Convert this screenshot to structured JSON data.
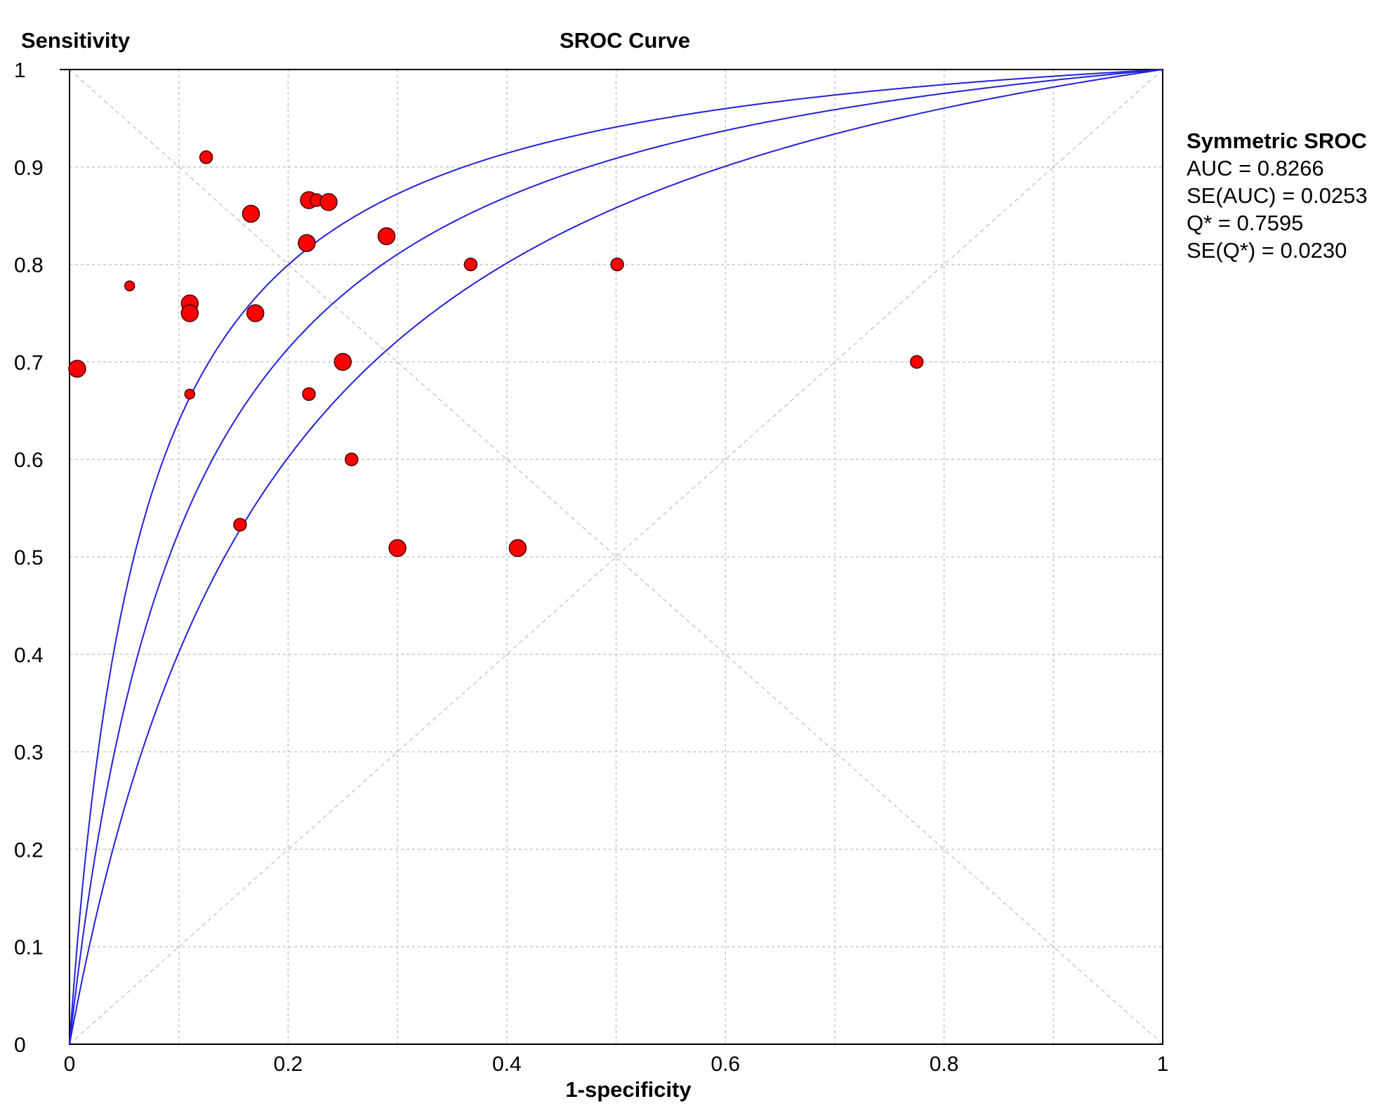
{
  "chart_data": {
    "type": "scatter",
    "title": "SROC Curve",
    "xlabel": "1-specificity",
    "ylabel": "Sensitivity",
    "xlim": [
      0,
      1
    ],
    "ylim": [
      0,
      1
    ],
    "grid": true,
    "x_ticks": [
      "0",
      "0.2",
      "0.4",
      "0.6",
      "0.8",
      "1"
    ],
    "y_ticks": [
      "0",
      "0.1",
      "0.2",
      "0.3",
      "0.4",
      "0.5",
      "0.6",
      "0.7",
      "0.8",
      "0.9",
      "1"
    ],
    "legend_position": "right",
    "legend": {
      "title": "Symmetric SROC",
      "lines": [
        "AUC = 0.8266",
        "SE(AUC) = 0.0253",
        "Q* = 0.7595",
        "SE(Q*) = 0.0230"
      ]
    },
    "curves": [
      {
        "name": "upper",
        "log_dor": 2.77
      },
      {
        "name": "sroc",
        "log_dor": 2.3
      },
      {
        "name": "lower",
        "log_dor": 1.8
      }
    ],
    "colors": {
      "curve": "#2020e0",
      "point": "#ff0000",
      "grid": "#c8c8c8"
    },
    "points": [
      {
        "x": 0.007,
        "y": 0.693,
        "weight": 3
      },
      {
        "x": 0.055,
        "y": 0.778,
        "weight": 1
      },
      {
        "x": 0.11,
        "y": 0.76,
        "weight": 3
      },
      {
        "x": 0.11,
        "y": 0.75,
        "weight": 3
      },
      {
        "x": 0.11,
        "y": 0.667,
        "weight": 1
      },
      {
        "x": 0.125,
        "y": 0.91,
        "weight": 2
      },
      {
        "x": 0.156,
        "y": 0.533,
        "weight": 2
      },
      {
        "x": 0.166,
        "y": 0.852,
        "weight": 3
      },
      {
        "x": 0.17,
        "y": 0.75,
        "weight": 3
      },
      {
        "x": 0.217,
        "y": 0.822,
        "weight": 3
      },
      {
        "x": 0.219,
        "y": 0.866,
        "weight": 3
      },
      {
        "x": 0.226,
        "y": 0.866,
        "weight": 2
      },
      {
        "x": 0.237,
        "y": 0.864,
        "weight": 3
      },
      {
        "x": 0.219,
        "y": 0.667,
        "weight": 2
      },
      {
        "x": 0.25,
        "y": 0.7,
        "weight": 3
      },
      {
        "x": 0.258,
        "y": 0.6,
        "weight": 2
      },
      {
        "x": 0.29,
        "y": 0.829,
        "weight": 3
      },
      {
        "x": 0.3,
        "y": 0.509,
        "weight": 3
      },
      {
        "x": 0.367,
        "y": 0.8,
        "weight": 2
      },
      {
        "x": 0.41,
        "y": 0.509,
        "weight": 3
      },
      {
        "x": 0.501,
        "y": 0.8,
        "weight": 2
      },
      {
        "x": 0.775,
        "y": 0.7,
        "weight": 2
      }
    ]
  }
}
